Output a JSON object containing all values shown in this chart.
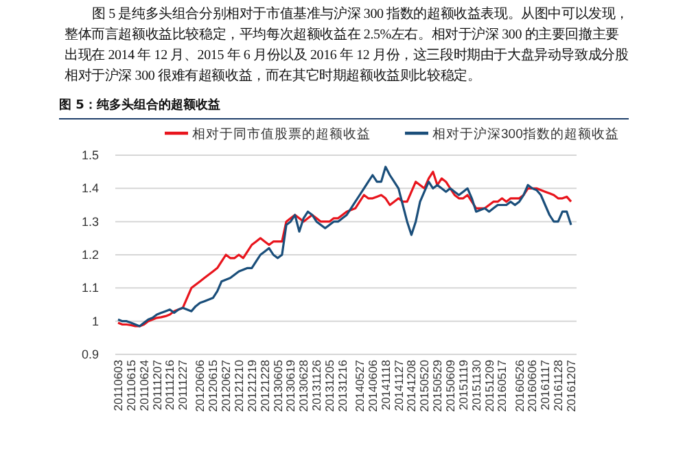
{
  "chart_data": {
    "type": "line",
    "title": "图 5：纯多头组合的超额收益",
    "annotations": [
      "图 5 是纯多头组合分别相对于市值基准与沪深 300 指数的超额收益表现。从图中可以发现，整体而言超额收益比较稳定，平均每次超额收益在 2.5%左右。相对于沪深 300 的主要回撤主要出现在 2014 年 12 月、2015 年 6 月份以及 2016 年 12 月份，这三段时期由于大盘异动导致成分股相对于沪深 300 很难有超额收益，而在其它时期超额收益则比较稳定。"
    ],
    "categories": [
      "20110603",
      null,
      null,
      "20110615",
      null,
      null,
      "20110624",
      null,
      null,
      "20111207",
      null,
      null,
      "20111216",
      null,
      null,
      "20111227",
      null,
      null,
      null,
      "20120606",
      null,
      null,
      "20120615",
      null,
      null,
      "20120627",
      null,
      null,
      "20121210",
      null,
      null,
      "20121219",
      null,
      null,
      "20121228",
      null,
      null,
      "20130605",
      null,
      null,
      "20130619",
      null,
      null,
      "20130628",
      null,
      null,
      "20131126",
      null,
      null,
      "20131205",
      null,
      null,
      "20131216",
      null,
      null,
      null,
      "20140527",
      null,
      null,
      "20140606",
      null,
      null,
      "20141118",
      null,
      null,
      "20141127",
      null,
      null,
      "20141208",
      null,
      null,
      "20150520",
      null,
      null,
      "20150529",
      null,
      null,
      "20150609",
      null,
      null,
      "20151119",
      null,
      null,
      "20151130",
      null,
      null,
      "20151209",
      null,
      null,
      "20160517",
      null,
      null,
      null,
      "20160526",
      null,
      null,
      "20160606",
      null,
      null,
      "20161117",
      null,
      null,
      "20161128",
      null,
      null,
      "20161207"
    ],
    "series": [
      {
        "name": "相对于同市值股票的超额收益",
        "color": "#e8141c",
        "values": [
          0.995,
          0.99,
          0.99,
          0.988,
          0.985,
          0.985,
          0.99,
          1.0,
          1.005,
          1.01,
          1.012,
          1.015,
          1.02,
          1.03,
          1.035,
          1.04,
          1.07,
          1.1,
          1.11,
          1.12,
          1.13,
          1.14,
          1.15,
          1.16,
          1.18,
          1.2,
          1.19,
          1.19,
          1.2,
          1.19,
          1.21,
          1.23,
          1.24,
          1.25,
          1.24,
          1.23,
          1.24,
          1.24,
          1.24,
          1.3,
          1.31,
          1.32,
          1.31,
          1.3,
          1.31,
          1.32,
          1.31,
          1.3,
          1.3,
          1.3,
          1.31,
          1.31,
          1.32,
          1.33,
          1.335,
          1.34,
          1.36,
          1.38,
          1.37,
          1.37,
          1.375,
          1.38,
          1.37,
          1.35,
          1.36,
          1.37,
          1.36,
          1.36,
          1.39,
          1.42,
          1.41,
          1.4,
          1.43,
          1.45,
          1.41,
          1.43,
          1.42,
          1.4,
          1.38,
          1.37,
          1.37,
          1.38,
          1.36,
          1.34,
          1.34,
          1.34,
          1.35,
          1.36,
          1.36,
          1.37,
          1.36,
          1.37,
          1.37,
          1.37,
          1.38,
          1.4,
          1.4,
          1.4,
          1.395,
          1.39,
          1.385,
          1.38,
          1.37,
          1.37,
          1.375,
          1.36
        ]
      },
      {
        "name": "相对于沪深300指数的超额收益",
        "color": "#1a4e7a",
        "values": [
          1.005,
          1.0,
          1.0,
          0.995,
          0.99,
          0.985,
          0.995,
          1.005,
          1.01,
          1.02,
          1.025,
          1.03,
          1.035,
          1.025,
          1.035,
          1.04,
          1.035,
          1.03,
          1.045,
          1.055,
          1.06,
          1.065,
          1.07,
          1.09,
          1.12,
          1.125,
          1.13,
          1.14,
          1.15,
          1.155,
          1.16,
          1.16,
          1.18,
          1.2,
          1.21,
          1.22,
          1.2,
          1.19,
          1.2,
          1.29,
          1.3,
          1.32,
          1.27,
          1.31,
          1.33,
          1.32,
          1.3,
          1.29,
          1.28,
          1.29,
          1.3,
          1.3,
          1.31,
          1.32,
          1.34,
          1.36,
          1.38,
          1.4,
          1.42,
          1.44,
          1.42,
          1.42,
          1.465,
          1.44,
          1.42,
          1.4,
          1.35,
          1.3,
          1.26,
          1.3,
          1.36,
          1.39,
          1.42,
          1.4,
          1.41,
          1.4,
          1.39,
          1.4,
          1.39,
          1.38,
          1.39,
          1.4,
          1.37,
          1.33,
          1.335,
          1.34,
          1.33,
          1.34,
          1.35,
          1.35,
          1.35,
          1.36,
          1.35,
          1.36,
          1.38,
          1.41,
          1.4,
          1.395,
          1.38,
          1.35,
          1.32,
          1.3,
          1.3,
          1.33,
          1.33,
          1.29
        ]
      }
    ],
    "ylim": [
      0.9,
      1.5
    ],
    "yticks": [
      0.9,
      1,
      1.1,
      1.2,
      1.3,
      1.4,
      1.5
    ],
    "grid": "y",
    "legend": "top"
  }
}
